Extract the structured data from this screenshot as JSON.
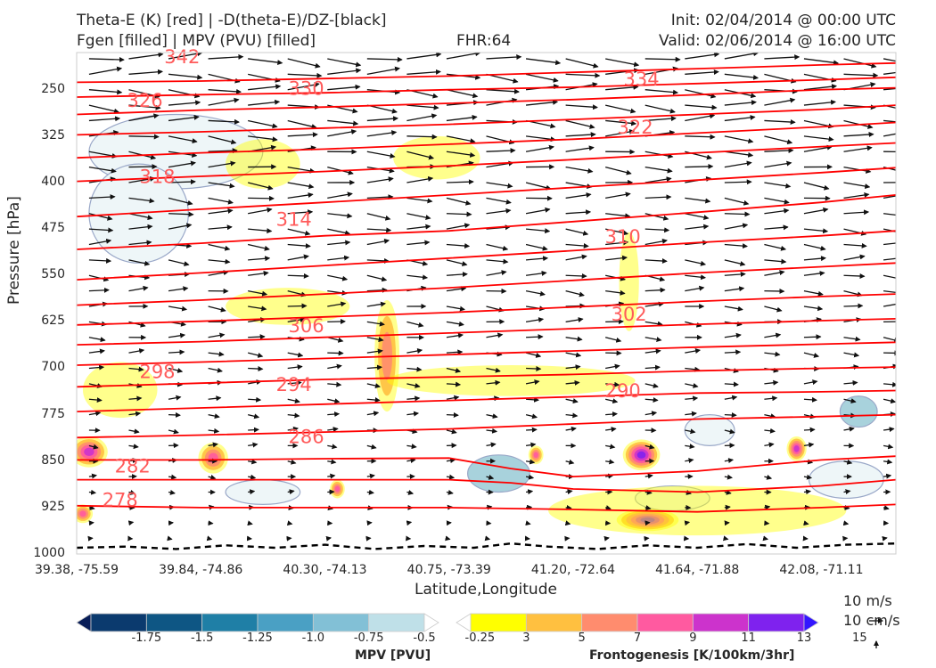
{
  "header": {
    "title_line1": "Theta-E (K) [red] | -D(theta-E)/DZ-[black]",
    "title_line2": "Fgen [filled] | MPV (PVU) [filled]",
    "fhr": "FHR:64",
    "init": "Init: 02/04/2014 @ 00:00 UTC",
    "valid": "Valid: 02/06/2014 @ 16:00 UTC"
  },
  "reference_vector": {
    "line1": "10 m/s",
    "line2": "10 cm/s"
  },
  "colorbars": {
    "mpv": {
      "label": "MPV [PVU]",
      "ticks": [
        "-1.75",
        "-1.5",
        "-1.25",
        "-1.0",
        "-0.75",
        "-0.5",
        "-0.25"
      ],
      "colors": [
        "#081d58",
        "#0b3a6e",
        "#0e5684",
        "#1f7fa6",
        "#4aa0c4",
        "#82c0d6",
        "#bfe0e8",
        "#ffffff"
      ]
    },
    "fgen": {
      "label": "Frontogenesis [K/100km/3hr]",
      "ticks": [
        "3",
        "5",
        "7",
        "9",
        "11",
        "13",
        "15"
      ],
      "colors": [
        "#ffffff",
        "#ffff00",
        "#ffc040",
        "#ff8c6e",
        "#ff5aa0",
        "#cc33cc",
        "#7f22ee",
        "#3316ff"
      ]
    }
  },
  "chart_data": {
    "type": "cross-section",
    "xlabel": "Latitude,Longitude",
    "ylabel": "Pressure [hPa]",
    "x_ticks": [
      "39.38, -75.59",
      "39.84, -74.86",
      "40.30, -74.13",
      "40.75, -73.39",
      "41.20, -72.64",
      "41.64, -71.88",
      "42.08, -71.11"
    ],
    "x_tick_index": [
      0,
      1,
      2,
      3,
      4,
      5,
      6
    ],
    "x_range": [
      0,
      6.6
    ],
    "y_ticks": [
      250,
      325,
      400,
      475,
      550,
      625,
      700,
      775,
      850,
      925,
      1000
    ],
    "ylim": [
      1000,
      190
    ],
    "theta_e_color": "#ff0000",
    "theta_e_labels": [
      {
        "text": "342",
        "x": 0.85,
        "p": 197
      },
      {
        "text": "330",
        "x": 1.85,
        "p": 248
      },
      {
        "text": "326",
        "x": 0.55,
        "p": 268
      },
      {
        "text": "334",
        "x": 4.55,
        "p": 233
      },
      {
        "text": "322",
        "x": 4.5,
        "p": 311
      },
      {
        "text": "318",
        "x": 0.65,
        "p": 391
      },
      {
        "text": "314",
        "x": 1.75,
        "p": 460
      },
      {
        "text": "310",
        "x": 4.4,
        "p": 488
      },
      {
        "text": "306",
        "x": 1.85,
        "p": 632
      },
      {
        "text": "302",
        "x": 4.45,
        "p": 613
      },
      {
        "text": "298",
        "x": 0.65,
        "p": 706
      },
      {
        "text": "294",
        "x": 1.75,
        "p": 727
      },
      {
        "text": "290",
        "x": 4.4,
        "p": 737
      },
      {
        "text": "286",
        "x": 1.85,
        "p": 811
      },
      {
        "text": "282",
        "x": 0.45,
        "p": 858
      },
      {
        "text": "278",
        "x": 0.35,
        "p": 913
      }
    ],
    "theta_e_lines": [
      {
        "x": [
          0,
          1,
          2,
          3,
          4,
          5,
          6,
          6.6
        ],
        "p": [
          238,
          236,
          232,
          228,
          222,
          216,
          210,
          207
        ]
      },
      {
        "x": [
          0,
          1,
          2,
          3,
          4,
          5,
          6,
          6.6
        ],
        "p": [
          262,
          258,
          255,
          250,
          246,
          240,
          234,
          230
        ]
      },
      {
        "x": [
          0,
          1,
          2,
          3,
          4,
          5,
          6,
          6.6
        ],
        "p": [
          290,
          283,
          278,
          272,
          266,
          258,
          250,
          247
        ]
      },
      {
        "x": [
          0,
          1,
          2,
          3,
          4,
          5,
          6,
          6.6
        ],
        "p": [
          323,
          318,
          312,
          306,
          298,
          290,
          282,
          275
        ]
      },
      {
        "x": [
          0,
          1,
          2,
          3,
          4,
          5,
          6,
          6.6
        ],
        "p": [
          360,
          352,
          346,
          338,
          330,
          320,
          310,
          303
        ]
      },
      {
        "x": [
          0,
          1,
          2,
          3,
          4,
          5,
          6,
          6.6
        ],
        "p": [
          398,
          390,
          382,
          373,
          363,
          352,
          342,
          336
        ]
      },
      {
        "x": [
          0,
          1,
          2,
          3,
          4,
          5,
          6,
          6.6
        ],
        "p": [
          455,
          443,
          432,
          420,
          408,
          396,
          384,
          376
        ]
      },
      {
        "x": [
          0,
          1,
          2,
          3,
          4,
          5,
          6,
          6.6
        ],
        "p": [
          508,
          498,
          486,
          478,
          463,
          448,
          432,
          420
        ]
      },
      {
        "x": [
          0,
          1,
          2,
          3,
          4,
          5,
          6,
          6.6
        ],
        "p": [
          557,
          546,
          534,
          522,
          510,
          497,
          486,
          478
        ]
      },
      {
        "x": [
          0,
          1,
          2,
          3,
          4,
          5,
          6,
          6.6
        ],
        "p": [
          598,
          590,
          580,
          570,
          558,
          546,
          536,
          530
        ]
      },
      {
        "x": [
          0,
          1,
          2,
          3,
          4,
          5,
          6,
          6.6
        ],
        "p": [
          630,
          624,
          617,
          610,
          601,
          592,
          584,
          580
        ]
      },
      {
        "x": [
          0,
          1,
          2,
          3,
          4,
          5,
          6,
          6.6
        ],
        "p": [
          662,
          657,
          650,
          643,
          636,
          629,
          623,
          620
        ]
      },
      {
        "x": [
          0,
          1,
          2,
          3,
          4,
          5,
          6,
          6.6
        ],
        "p": [
          695,
          690,
          684,
          678,
          672,
          666,
          661,
          658
        ]
      },
      {
        "x": [
          0,
          1,
          2,
          3,
          4,
          5,
          6,
          6.6
        ],
        "p": [
          730,
          724,
          718,
          714,
          710,
          704,
          700,
          698
        ]
      },
      {
        "x": [
          0,
          1,
          2,
          3,
          4,
          5,
          6,
          6.6
        ],
        "p": [
          770,
          764,
          758,
          752,
          746,
          740,
          738,
          736
        ]
      },
      {
        "x": [
          0,
          1,
          2,
          3,
          4,
          5,
          6,
          6.6
        ],
        "p": [
          812,
          808,
          803,
          798,
          790,
          782,
          778,
          775
        ]
      },
      {
        "x": [
          0,
          1,
          2,
          3,
          3.5,
          4,
          5,
          6,
          6.6
        ],
        "p": [
          848,
          848,
          846,
          845,
          862,
          875,
          866,
          848,
          842
        ]
      },
      {
        "x": [
          0,
          1,
          2,
          3,
          3.5,
          4,
          5,
          6,
          6.6
        ],
        "p": [
          880,
          880,
          880,
          880,
          885,
          895,
          900,
          890,
          880
        ]
      },
      {
        "x": [
          0,
          1,
          2,
          3,
          4,
          5,
          6,
          6.6
        ],
        "p": [
          922,
          925,
          925,
          925,
          928,
          932,
          925,
          920
        ]
      }
    ],
    "theta_e_gradient_zero_line": {
      "x": [
        0,
        0.4,
        0.8,
        1.2,
        1.6,
        2.0,
        2.4,
        2.8,
        3.2,
        3.5,
        3.8,
        4.2,
        4.6,
        5.0,
        5.4,
        5.8,
        6.2,
        6.6
      ],
      "p": [
        990,
        988,
        992,
        986,
        990,
        985,
        992,
        987,
        990,
        983,
        988,
        992,
        986,
        990,
        984,
        990,
        985,
        983
      ]
    },
    "fgen_patches": [
      {
        "x": 0.35,
        "p": 735,
        "rx": 0.3,
        "rp": 45,
        "level": 1
      },
      {
        "x": 0.1,
        "p": 835,
        "rx": 0.15,
        "rp": 25,
        "level": 5
      },
      {
        "x": 1.1,
        "p": 845,
        "rx": 0.12,
        "rp": 25,
        "level": 4
      },
      {
        "x": 2.5,
        "p": 680,
        "rx": 0.1,
        "rp": 90,
        "level": 3
      },
      {
        "x": 1.5,
        "p": 370,
        "rx": 0.3,
        "rp": 40,
        "level": 1
      },
      {
        "x": 2.9,
        "p": 360,
        "rx": 0.35,
        "rp": 35,
        "level": 1
      },
      {
        "x": 4.45,
        "p": 560,
        "rx": 0.08,
        "rp": 80,
        "level": 1
      },
      {
        "x": 1.7,
        "p": 600,
        "rx": 0.5,
        "rp": 30,
        "level": 1
      },
      {
        "x": 4.55,
        "p": 840,
        "rx": 0.15,
        "rp": 25,
        "level": 6
      },
      {
        "x": 4.6,
        "p": 945,
        "rx": 0.25,
        "rp": 18,
        "level": 6
      },
      {
        "x": 5.8,
        "p": 830,
        "rx": 0.08,
        "rp": 20,
        "level": 5
      },
      {
        "x": 2.1,
        "p": 895,
        "rx": 0.06,
        "rp": 15,
        "level": 4
      },
      {
        "x": 3.7,
        "p": 840,
        "rx": 0.06,
        "rp": 15,
        "level": 4
      },
      {
        "x": 0.05,
        "p": 935,
        "rx": 0.08,
        "rp": 15,
        "level": 4
      },
      {
        "x": 5.0,
        "p": 930,
        "rx": 1.2,
        "rp": 40,
        "level": 1
      },
      {
        "x": 3.5,
        "p": 720,
        "rx": 1.0,
        "rp": 25,
        "level": 1
      }
    ],
    "mpv_patches": [
      {
        "x": 0.8,
        "p": 350,
        "rx": 0.7,
        "rp": 60,
        "level": 1
      },
      {
        "x": 0.5,
        "p": 450,
        "rx": 0.4,
        "rp": 80,
        "level": 1
      },
      {
        "x": 3.4,
        "p": 870,
        "rx": 0.25,
        "rp": 30,
        "level": 2
      },
      {
        "x": 6.3,
        "p": 770,
        "rx": 0.15,
        "rp": 25,
        "level": 2
      },
      {
        "x": 5.1,
        "p": 800,
        "rx": 0.2,
        "rp": 25,
        "level": 1
      },
      {
        "x": 4.8,
        "p": 910,
        "rx": 0.3,
        "rp": 20,
        "level": 1
      },
      {
        "x": 6.2,
        "p": 880,
        "rx": 0.3,
        "rp": 30,
        "level": 1
      },
      {
        "x": 1.5,
        "p": 900,
        "rx": 0.3,
        "rp": 20,
        "level": 1
      }
    ],
    "wind_vectors": {
      "description": "arrows decreasing in magnitude from upper levels toward the surface, mostly eastward",
      "levels": [
        200,
        225,
        250,
        275,
        300,
        325,
        350,
        375,
        400,
        425,
        450,
        475,
        500,
        525,
        550,
        575,
        600,
        625,
        650,
        675,
        700,
        725,
        750,
        775,
        800,
        825,
        850,
        875,
        900,
        925,
        950,
        975
      ],
      "max_length": 0.28
    }
  }
}
